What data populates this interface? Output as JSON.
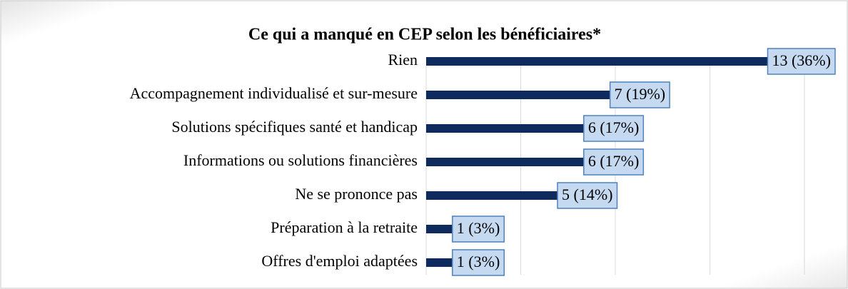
{
  "chart_data": {
    "type": "barh",
    "title": "Ce qui a manqué en CEP selon les bénéficiaires*",
    "categories": [
      "Rien",
      "Accompagnement individualisé et sur-mesure",
      "Solutions spécifiques santé et handicap",
      "Informations ou solutions financières ",
      "Ne se prononce pas",
      "Préparation à la retraite",
      "Offres d'emploi adaptées"
    ],
    "values": [
      13,
      7,
      6,
      6,
      5,
      1,
      1
    ],
    "value_labels": [
      "13 (36%)",
      "7 (19%)",
      "6 (17%)",
      "6 (17%)",
      "5 (14%)",
      "1 (3%)",
      "1 (3%)"
    ],
    "color": "#0f2a5c",
    "xlim": [
      0,
      14.4
    ],
    "xticks": [
      0,
      3.6,
      7.2,
      10.8,
      14.4
    ],
    "grid": true
  }
}
